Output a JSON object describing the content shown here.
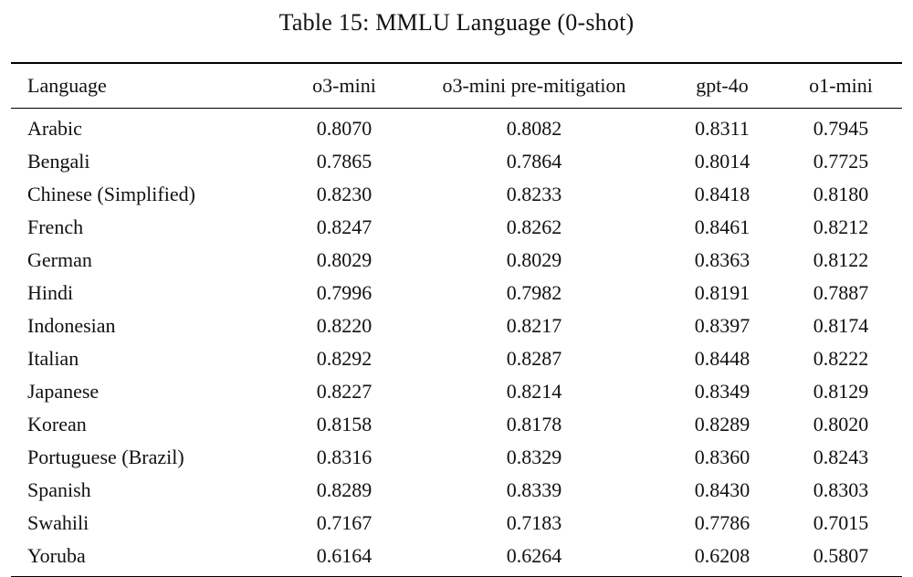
{
  "page": {
    "title": "Table 15: MMLU Language (0-shot)"
  },
  "table": {
    "columns": [
      "Language",
      "o3-mini",
      "o3-mini pre-mitigation",
      "gpt-4o",
      "o1-mini"
    ],
    "rows": [
      {
        "language": "Arabic",
        "values": [
          "0.8070",
          "0.8082",
          "0.8311",
          "0.7945"
        ]
      },
      {
        "language": "Bengali",
        "values": [
          "0.7865",
          "0.7864",
          "0.8014",
          "0.7725"
        ]
      },
      {
        "language": "Chinese (Simplified)",
        "values": [
          "0.8230",
          "0.8233",
          "0.8418",
          "0.8180"
        ]
      },
      {
        "language": "French",
        "values": [
          "0.8247",
          "0.8262",
          "0.8461",
          "0.8212"
        ]
      },
      {
        "language": "German",
        "values": [
          "0.8029",
          "0.8029",
          "0.8363",
          "0.8122"
        ]
      },
      {
        "language": "Hindi",
        "values": [
          "0.7996",
          "0.7982",
          "0.8191",
          "0.7887"
        ]
      },
      {
        "language": "Indonesian",
        "values": [
          "0.8220",
          "0.8217",
          "0.8397",
          "0.8174"
        ]
      },
      {
        "language": "Italian",
        "values": [
          "0.8292",
          "0.8287",
          "0.8448",
          "0.8222"
        ]
      },
      {
        "language": "Japanese",
        "values": [
          "0.8227",
          "0.8214",
          "0.8349",
          "0.8129"
        ]
      },
      {
        "language": "Korean",
        "values": [
          "0.8158",
          "0.8178",
          "0.8289",
          "0.8020"
        ]
      },
      {
        "language": "Portuguese (Brazil)",
        "values": [
          "0.8316",
          "0.8329",
          "0.8360",
          "0.8243"
        ]
      },
      {
        "language": "Spanish",
        "values": [
          "0.8289",
          "0.8339",
          "0.8430",
          "0.8303"
        ]
      },
      {
        "language": "Swahili",
        "values": [
          "0.7167",
          "0.7183",
          "0.7786",
          "0.7015"
        ]
      },
      {
        "language": "Yoruba",
        "values": [
          "0.6164",
          "0.6264",
          "0.6208",
          "0.5807"
        ]
      }
    ]
  }
}
